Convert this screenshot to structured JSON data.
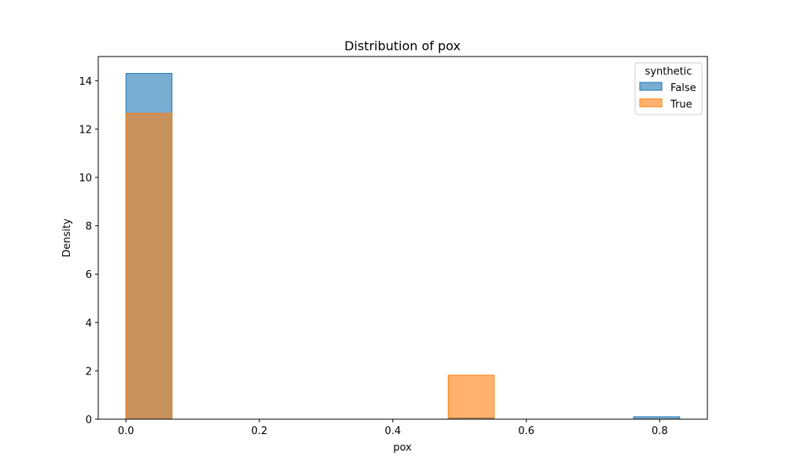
{
  "chart_data": {
    "type": "bar",
    "title": "Distribution of pox",
    "xlabel": "pox",
    "ylabel": "Density",
    "xlim": [
      -0.0415,
      0.8715
    ],
    "ylim": [
      0,
      15
    ],
    "xticks": [
      0.0,
      0.2,
      0.4,
      0.6,
      0.8
    ],
    "yticks": [
      0,
      2,
      4,
      6,
      8,
      10,
      12,
      14
    ],
    "xtick_labels": [
      "0.0",
      "0.2",
      "0.4",
      "0.6",
      "0.8"
    ],
    "ytick_labels": [
      "0",
      "2",
      "4",
      "6",
      "8",
      "10",
      "12",
      "14"
    ],
    "grid": false,
    "legend": {
      "title": "synthetic",
      "placement": "top-right"
    },
    "series": [
      {
        "name": "False",
        "color": "#1f77b4",
        "bins": [
          {
            "x0": 0.0,
            "x1": 0.069,
            "value": 14.3
          },
          {
            "x0": 0.483,
            "x1": 0.552,
            "value": 0.05
          },
          {
            "x0": 0.761,
            "x1": 0.83,
            "value": 0.1
          }
        ]
      },
      {
        "name": "True",
        "color": "#ff7f0e",
        "bins": [
          {
            "x0": 0.0,
            "x1": 0.069,
            "value": 12.65
          },
          {
            "x0": 0.483,
            "x1": 0.552,
            "value": 1.82
          }
        ]
      }
    ]
  }
}
